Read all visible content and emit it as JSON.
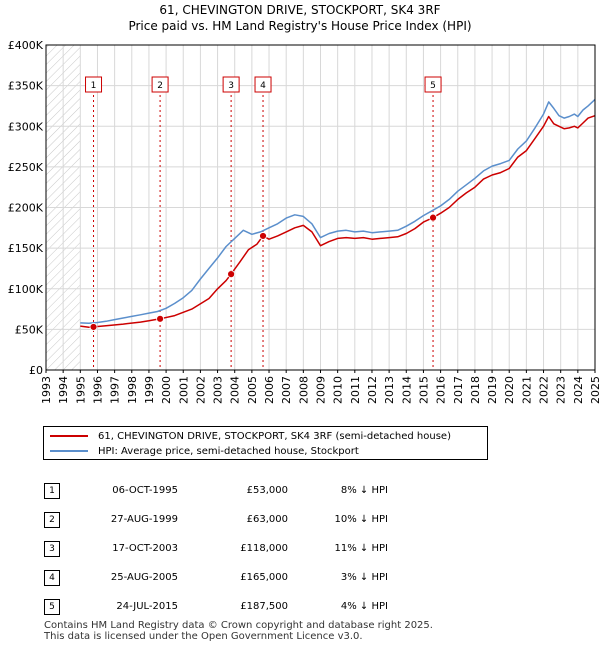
{
  "title": "61, CHEVINGTON DRIVE, STOCKPORT, SK4 3RF",
  "subtitle": "Price paid vs. HM Land Registry's House Price Index (HPI)",
  "colors": {
    "price": "#cc0000",
    "hpi": "#5b8fcc",
    "grid": "#d8d8d8",
    "hatch": "#c8c8c8",
    "marker": "#cc0000"
  },
  "chart_data": {
    "type": "line",
    "xlim": [
      1993,
      2025
    ],
    "ylim": [
      0,
      400000
    ],
    "y_ticks": [
      0,
      50000,
      100000,
      150000,
      200000,
      250000,
      300000,
      350000,
      400000
    ],
    "y_tick_labels": [
      "£0",
      "£50K",
      "£100K",
      "£150K",
      "£200K",
      "£250K",
      "£300K",
      "£350K",
      "£400K"
    ],
    "x_ticks": [
      1993,
      1994,
      1995,
      1996,
      1997,
      1998,
      1999,
      2000,
      2001,
      2002,
      2003,
      2004,
      2005,
      2006,
      2007,
      2008,
      2009,
      2010,
      2011,
      2012,
      2013,
      2014,
      2015,
      2016,
      2017,
      2018,
      2019,
      2020,
      2021,
      2022,
      2023,
      2024,
      2025
    ],
    "hatched_until": 1995.0,
    "series": [
      {
        "name": "61, CHEVINGTON DRIVE, STOCKPORT, SK4 3RF (semi-detached house)",
        "color": "#cc0000",
        "x": [
          1995.0,
          1995.5,
          1995.77,
          1996.5,
          1997.5,
          1998.5,
          1999.0,
          1999.65,
          2000.5,
          2001.5,
          2002.5,
          2003.0,
          2003.5,
          2003.79,
          2004.3,
          2004.8,
          2005.3,
          2005.65,
          2006.0,
          2006.5,
          2007.0,
          2007.5,
          2008.0,
          2008.5,
          2009.0,
          2009.5,
          2010.0,
          2010.5,
          2011.0,
          2011.5,
          2012.0,
          2012.5,
          2013.0,
          2013.5,
          2014.0,
          2014.5,
          2015.0,
          2015.56,
          2016.0,
          2016.5,
          2017.0,
          2017.5,
          2018.0,
          2018.5,
          2019.0,
          2019.5,
          2020.0,
          2020.5,
          2021.0,
          2021.5,
          2022.0,
          2022.3,
          2022.6,
          2022.9,
          2023.2,
          2023.5,
          2023.8,
          2024.0,
          2024.3,
          2024.6,
          2025.0
        ],
        "values": [
          54000,
          52500,
          53000,
          54500,
          56500,
          59000,
          60500,
          63000,
          67000,
          75000,
          88000,
          100000,
          110000,
          118000,
          133000,
          148000,
          155000,
          165000,
          161000,
          165000,
          170000,
          175000,
          178000,
          170000,
          153000,
          158000,
          162000,
          163000,
          162000,
          163000,
          161000,
          162000,
          163000,
          164000,
          168000,
          174000,
          182000,
          187500,
          193000,
          200000,
          210000,
          218000,
          225000,
          235000,
          240000,
          243000,
          248000,
          262000,
          270000,
          285000,
          300000,
          312000,
          303000,
          300000,
          297000,
          298000,
          300000,
          298000,
          304000,
          310000,
          313000
        ]
      },
      {
        "name": "HPI: Average price, semi-detached house, Stockport",
        "color": "#5b8fcc",
        "x": [
          1995.0,
          1995.5,
          1996.0,
          1996.5,
          1997.0,
          1997.5,
          1998.0,
          1998.5,
          1999.0,
          1999.5,
          2000.0,
          2000.5,
          2001.0,
          2001.5,
          2002.0,
          2002.5,
          2003.0,
          2003.5,
          2004.0,
          2004.5,
          2005.0,
          2005.5,
          2006.0,
          2006.5,
          2007.0,
          2007.5,
          2008.0,
          2008.5,
          2009.0,
          2009.5,
          2010.0,
          2010.5,
          2011.0,
          2011.5,
          2012.0,
          2012.5,
          2013.0,
          2013.5,
          2014.0,
          2014.5,
          2015.0,
          2015.5,
          2016.0,
          2016.5,
          2017.0,
          2017.5,
          2018.0,
          2018.5,
          2019.0,
          2019.5,
          2020.0,
          2020.5,
          2021.0,
          2021.5,
          2022.0,
          2022.3,
          2022.6,
          2022.9,
          2023.2,
          2023.5,
          2023.8,
          2024.0,
          2024.3,
          2024.6,
          2025.0
        ],
        "values": [
          58000,
          57500,
          58500,
          60000,
          62000,
          64000,
          66000,
          68000,
          70000,
          72000,
          76000,
          82000,
          89000,
          98000,
          112000,
          125000,
          138000,
          152000,
          162000,
          172000,
          167000,
          170000,
          175000,
          180000,
          187000,
          191000,
          189000,
          180000,
          163000,
          168000,
          171000,
          172000,
          170000,
          171000,
          169000,
          170000,
          171000,
          172000,
          177000,
          183000,
          190000,
          196000,
          202000,
          210000,
          220000,
          228000,
          236000,
          245000,
          251000,
          254000,
          258000,
          272000,
          282000,
          298000,
          315000,
          330000,
          322000,
          313000,
          310000,
          312000,
          315000,
          312000,
          320000,
          325000,
          333000
        ]
      }
    ],
    "sales": [
      {
        "id": "1",
        "date": "06-OCT-1995",
        "year": 1995.77,
        "price": 53000,
        "price_label": "£53,000",
        "diff": "8% ↓ HPI"
      },
      {
        "id": "2",
        "date": "27-AUG-1999",
        "year": 1999.65,
        "price": 63000,
        "price_label": "£63,000",
        "diff": "10% ↓ HPI"
      },
      {
        "id": "3",
        "date": "17-OCT-2003",
        "year": 2003.79,
        "price": 118000,
        "price_label": "£118,000",
        "diff": "11% ↓ HPI"
      },
      {
        "id": "4",
        "date": "25-AUG-2005",
        "year": 2005.65,
        "price": 165000,
        "price_label": "£165,000",
        "diff": "3% ↓ HPI"
      },
      {
        "id": "5",
        "date": "24-JUL-2015",
        "year": 2015.56,
        "price": 187500,
        "price_label": "£187,500",
        "diff": "4% ↓ HPI"
      }
    ]
  },
  "legend": {
    "price_label": "61, CHEVINGTON DRIVE, STOCKPORT, SK4 3RF (semi-detached house)",
    "hpi_label": "HPI: Average price, semi-detached house, Stockport"
  },
  "footer": {
    "line1": "Contains HM Land Registry data © Crown copyright and database right 2025.",
    "line2": "This data is licensed under the Open Government Licence v3.0."
  }
}
